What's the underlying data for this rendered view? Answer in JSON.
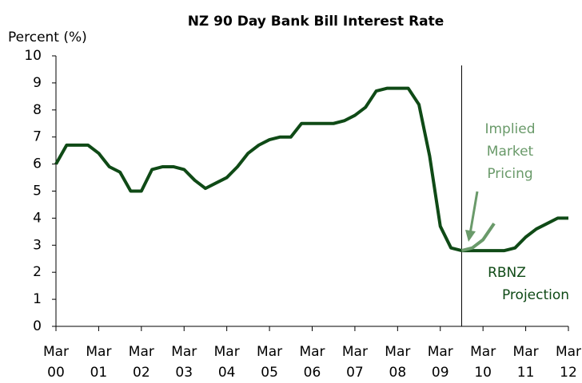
{
  "chart_data": {
    "type": "line",
    "title": "NZ 90 Day Bank Bill Interest Rate",
    "y_label": "Percent (%)",
    "xlim": [
      0,
      12
    ],
    "xticks": [
      {
        "value": 0,
        "label": "Mar 00"
      },
      {
        "value": 1,
        "label": "Mar 01"
      },
      {
        "value": 2,
        "label": "Mar 02"
      },
      {
        "value": 3,
        "label": "Mar 03"
      },
      {
        "value": 4,
        "label": "Mar 04"
      },
      {
        "value": 5,
        "label": "Mar 05"
      },
      {
        "value": 6,
        "label": "Mar 06"
      },
      {
        "value": 7,
        "label": "Mar 07"
      },
      {
        "value": 8,
        "label": "Mar 08"
      },
      {
        "value": 9,
        "label": "Mar 09"
      },
      {
        "value": 10,
        "label": "Mar 10"
      },
      {
        "value": 11,
        "label": "Mar 11"
      },
      {
        "value": 12,
        "label": "Mar 12"
      }
    ],
    "ylim": [
      0,
      10
    ],
    "yticks": [
      0,
      1,
      2,
      3,
      4,
      5,
      6,
      7,
      8,
      9,
      10
    ],
    "projection_start": 9.5,
    "series": [
      {
        "name": "RBNZ Projection",
        "color": "#0f4a16",
        "x": [
          0,
          0.25,
          0.5,
          0.75,
          1,
          1.25,
          1.5,
          1.75,
          2,
          2.25,
          2.5,
          2.75,
          3,
          3.25,
          3.5,
          3.75,
          4,
          4.25,
          4.5,
          4.75,
          5,
          5.25,
          5.5,
          5.75,
          6,
          6.25,
          6.5,
          6.75,
          7,
          7.25,
          7.5,
          7.75,
          8,
          8.25,
          8.5,
          8.75,
          9,
          9.25,
          9.5,
          9.75,
          10,
          10.25,
          10.5,
          10.75,
          11,
          11.25,
          11.5,
          11.75,
          12
        ],
        "values": [
          6.0,
          6.7,
          6.7,
          6.7,
          6.4,
          5.9,
          5.7,
          5.0,
          5.0,
          5.8,
          5.9,
          5.9,
          5.8,
          5.4,
          5.1,
          5.3,
          5.5,
          5.9,
          6.4,
          6.7,
          6.9,
          7.0,
          7.0,
          7.5,
          7.5,
          7.5,
          7.5,
          7.6,
          7.8,
          8.1,
          8.7,
          8.8,
          8.8,
          8.8,
          8.2,
          6.3,
          3.7,
          2.9,
          2.8,
          2.8,
          2.8,
          2.8,
          2.8,
          2.9,
          3.3,
          3.6,
          3.8,
          4.0,
          4.0
        ]
      },
      {
        "name": "Implied Market Pricing",
        "color": "#6a9a6a",
        "x": [
          9.5,
          9.75,
          10.0,
          10.26
        ],
        "values": [
          2.8,
          2.9,
          3.2,
          3.8
        ]
      }
    ],
    "annotations": [
      {
        "lines": [
          "Implied",
          "Market",
          "Pricing"
        ],
        "color": "#6a9a6a"
      },
      {
        "lines": [
          "RBNZ",
          "Projection"
        ],
        "color": "#0f4a16"
      }
    ]
  }
}
